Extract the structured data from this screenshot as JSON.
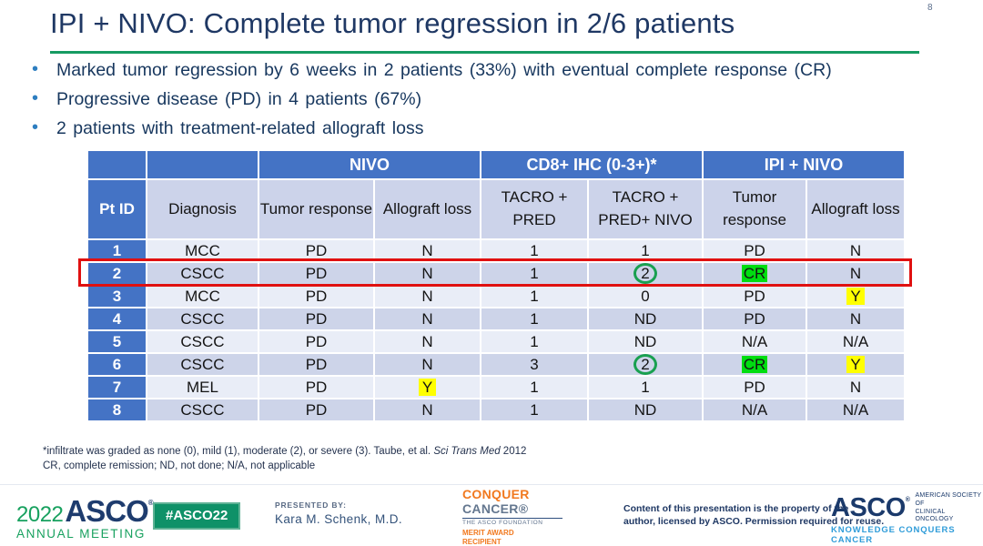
{
  "slide": {
    "page_number": "8",
    "title": "IPI + NIVO: Complete tumor regression in 2/6 patients",
    "bullets": [
      "Marked tumor regression by 6 weeks in 2 patients (33%) with eventual complete response (CR)",
      "Progressive disease (PD) in 4 patients (67%)",
      "2 patients with treatment-related allograft loss"
    ]
  },
  "table": {
    "group_headers": [
      {
        "label": "",
        "span": 1
      },
      {
        "label": "",
        "span": 1
      },
      {
        "label": "NIVO",
        "span": 2
      },
      {
        "label": "CD8+ IHC (0-3+)*",
        "span": 2
      },
      {
        "label": "IPI + NIVO",
        "span": 2
      }
    ],
    "column_headers": [
      "Pt ID",
      "Diagnosis",
      "Tumor response",
      "Allograft loss",
      "TACRO + PRED",
      "TACRO + PRED+ NIVO",
      "Tumor response",
      "Allograft loss"
    ],
    "rows": [
      {
        "id": "1",
        "outlined": false,
        "cells": [
          {
            "t": "MCC"
          },
          {
            "t": "PD"
          },
          {
            "t": "N"
          },
          {
            "t": "1"
          },
          {
            "t": "1"
          },
          {
            "t": "PD"
          },
          {
            "t": "N"
          }
        ]
      },
      {
        "id": "2",
        "outlined": true,
        "cells": [
          {
            "t": "CSCC"
          },
          {
            "t": "PD"
          },
          {
            "t": "N"
          },
          {
            "t": "1"
          },
          {
            "t": "2",
            "m": "circle"
          },
          {
            "t": "CR",
            "m": "green"
          },
          {
            "t": "N"
          }
        ]
      },
      {
        "id": "3",
        "outlined": false,
        "cells": [
          {
            "t": "MCC"
          },
          {
            "t": "PD"
          },
          {
            "t": "N"
          },
          {
            "t": "1"
          },
          {
            "t": "0"
          },
          {
            "t": "PD"
          },
          {
            "t": "Y",
            "m": "yellow"
          }
        ]
      },
      {
        "id": "4",
        "outlined": false,
        "cells": [
          {
            "t": "CSCC"
          },
          {
            "t": "PD"
          },
          {
            "t": "N"
          },
          {
            "t": "1"
          },
          {
            "t": "ND"
          },
          {
            "t": "PD"
          },
          {
            "t": "N"
          }
        ]
      },
      {
        "id": "5",
        "outlined": false,
        "cells": [
          {
            "t": "CSCC"
          },
          {
            "t": "PD"
          },
          {
            "t": "N"
          },
          {
            "t": "1"
          },
          {
            "t": "ND"
          },
          {
            "t": "N/A"
          },
          {
            "t": "N/A"
          }
        ]
      },
      {
        "id": "6",
        "outlined": false,
        "cells": [
          {
            "t": "CSCC"
          },
          {
            "t": "PD"
          },
          {
            "t": "N"
          },
          {
            "t": "3"
          },
          {
            "t": "2",
            "m": "circle"
          },
          {
            "t": "CR",
            "m": "green"
          },
          {
            "t": "Y",
            "m": "yellow"
          }
        ]
      },
      {
        "id": "7",
        "outlined": false,
        "cells": [
          {
            "t": "MEL"
          },
          {
            "t": "PD"
          },
          {
            "t": "Y",
            "m": "yellow"
          },
          {
            "t": "1"
          },
          {
            "t": "1"
          },
          {
            "t": "PD"
          },
          {
            "t": "N"
          }
        ]
      },
      {
        "id": "8",
        "outlined": false,
        "cells": [
          {
            "t": "CSCC"
          },
          {
            "t": "PD"
          },
          {
            "t": "N"
          },
          {
            "t": "1"
          },
          {
            "t": "ND"
          },
          {
            "t": "N/A"
          },
          {
            "t": "N/A"
          }
        ]
      }
    ]
  },
  "footnotes": {
    "line1_pre": "*infiltrate was graded as none (0), mild (1), moderate (2), or severe (3). Taube, et al. ",
    "line1_italic": "Sci Trans Med",
    "line1_post": " 2012",
    "line2": "CR, complete remission; ND, not done; N/A, not applicable"
  },
  "footer": {
    "asco_2022": {
      "year": "2022",
      "name": "ASCO",
      "reg": "®",
      "subtitle": "ANNUAL MEETING"
    },
    "hashtag": "#ASCO22",
    "presented_by_label": "PRESENTED BY:",
    "presenter_name": "Kara M. Schenk, M.D.",
    "conquer_cancer": {
      "line1": "CONQUER",
      "line2": "CANCER®",
      "foundation": "THE ASCO FOUNDATION",
      "award_line1": "MERIT AWARD",
      "award_line2": "RECIPIENT"
    },
    "copyright_line1": "Content of this presentation is the property of the",
    "copyright_line2": "author, licensed by ASCO. Permission required for reuse.",
    "asco_right": {
      "name": "ASCO",
      "reg": "®",
      "society_line1": "AMERICAN SOCIETY OF",
      "society_line2": "CLINICAL ONCOLOGY",
      "tagline": "KNOWLEDGE CONQUERS CANCER"
    }
  },
  "colors": {
    "title_navy": "#1F3864",
    "divider_green": "#169B62",
    "table_header_blue": "#4473C5",
    "table_header_lavender": "#CCD3EA",
    "row_light": "#E9EDF7",
    "row_dark": "#CDD4E9",
    "highlight_green": "#00DD11",
    "highlight_yellow": "#FFFF00",
    "annotation_circle_green": "#19A050",
    "row_outline_red": "#E01010",
    "footer_green": "#18A15F",
    "footer_orange": "#F1791F",
    "footer_teal": "#2F9CD9"
  }
}
